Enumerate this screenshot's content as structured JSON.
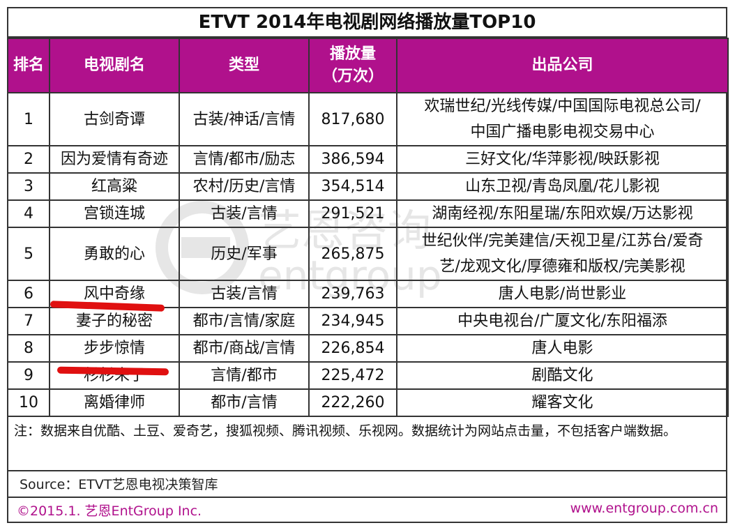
{
  "title": "ETVT 2014年电视剧网络播放量TOP10",
  "headers": {
    "rank": "排名",
    "name": "电视剧名",
    "type": "类型",
    "plays_line1": "播放量",
    "plays_line2": "（万次）",
    "company": "出品公司"
  },
  "rows": [
    {
      "rank": "1",
      "name": "古剑奇谭",
      "type": "古装/神话/言情",
      "plays": "817,680",
      "company_line1": "欢瑞世纪/光线传媒/中国国际电视总公司/",
      "company_line2": "中国广播电影电视交易中心"
    },
    {
      "rank": "2",
      "name": "因为爱情有奇迹",
      "type": "言情/都市/励志",
      "plays": "386,594",
      "company_line1": "三好文化/华萍影视/映跃影视",
      "company_line2": ""
    },
    {
      "rank": "3",
      "name": "红高粱",
      "type": "农村/历史/言情",
      "plays": "354,514",
      "company_line1": "山东卫视/青岛凤凰/花儿影视",
      "company_line2": ""
    },
    {
      "rank": "4",
      "name": "宫锁连城",
      "type": "古装/言情",
      "plays": "291,521",
      "company_line1": "湖南经视/东阳星瑞/东阳欢娱/万达影视",
      "company_line2": ""
    },
    {
      "rank": "5",
      "name": "勇敢的心",
      "type": "历史/军事",
      "plays": "265,875",
      "company_line1": "世纪伙伴/完美建信/天视卫星/江苏台/爱奇",
      "company_line2": "艺/龙观文化/厚德雍和版权/完美影视"
    },
    {
      "rank": "6",
      "name": "风中奇缘",
      "type": "古装/言情",
      "plays": "239,763",
      "company_line1": "唐人电影/尚世影业",
      "company_line2": ""
    },
    {
      "rank": "7",
      "name": "妻子的秘密",
      "type": "都市/言情/家庭",
      "plays": "234,945",
      "company_line1": "中央电视台/广厦文化/东阳福添",
      "company_line2": ""
    },
    {
      "rank": "8",
      "name": "步步惊情",
      "type": "都市/商战/言情",
      "plays": "226,854",
      "company_line1": "唐人电影",
      "company_line2": ""
    },
    {
      "rank": "9",
      "name": "杉杉来了",
      "type": "言情/都市",
      "plays": "225,472",
      "company_line1": "剧酷文化",
      "company_line2": ""
    },
    {
      "rank": "10",
      "name": "离婚律师",
      "type": "都市/言情",
      "plays": "222,260",
      "company_line1": "耀客文化",
      "company_line2": ""
    }
  ],
  "note": "注：数据来自优酷、土豆、爱奇艺，搜狐视频、腾讯视频、乐视网。数据统计为网站点击量，不包括客户端数据。",
  "source": "Source：ETVT艺恩电视决策智库",
  "copyright": "©2015.1. 艺恩EntGroup Inc.",
  "website": "www.entgroup.com.cn",
  "watermark": {
    "cn": "艺恩咨询",
    "en": "entgroup"
  },
  "colors": {
    "header_bg": "#b0118c",
    "accent_text": "#b0118c",
    "red_marker": "#e01010"
  }
}
